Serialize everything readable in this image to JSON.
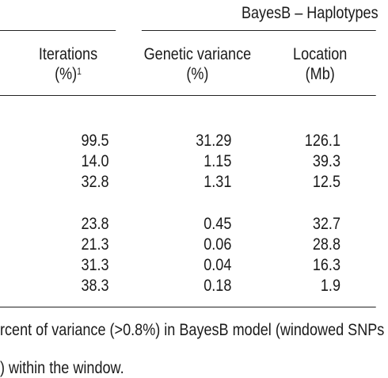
{
  "group_header": "BayesB – Haplotypes",
  "columns": {
    "iterations": {
      "line1": "Iterations",
      "line2": "(%)",
      "sup": "1"
    },
    "genetic_variance": {
      "line1": "Genetic variance",
      "line2": "(%)"
    },
    "location": {
      "line1": "Location",
      "line2": "(Mb)"
    }
  },
  "rows": [
    {
      "iterations": "99.5",
      "genetic_variance": "31.29",
      "location": "126.1"
    },
    {
      "iterations": "14.0",
      "genetic_variance": "1.15",
      "location": "39.3"
    },
    {
      "iterations": "32.8",
      "genetic_variance": "1.31",
      "location": "12.5"
    },
    {
      "iterations": "23.8",
      "genetic_variance": "0.45",
      "location": "32.7"
    },
    {
      "iterations": "21.3",
      "genetic_variance": "0.06",
      "location": "28.8"
    },
    {
      "iterations": "31.3",
      "genetic_variance": "0.04",
      "location": "16.3"
    },
    {
      "iterations": "38.3",
      "genetic_variance": "0.18",
      "location": "1.9"
    }
  ],
  "footnotes": [
    "rcent of variance (>0.8%) in BayesB model (windowed SNPs",
    ") within the window."
  ]
}
